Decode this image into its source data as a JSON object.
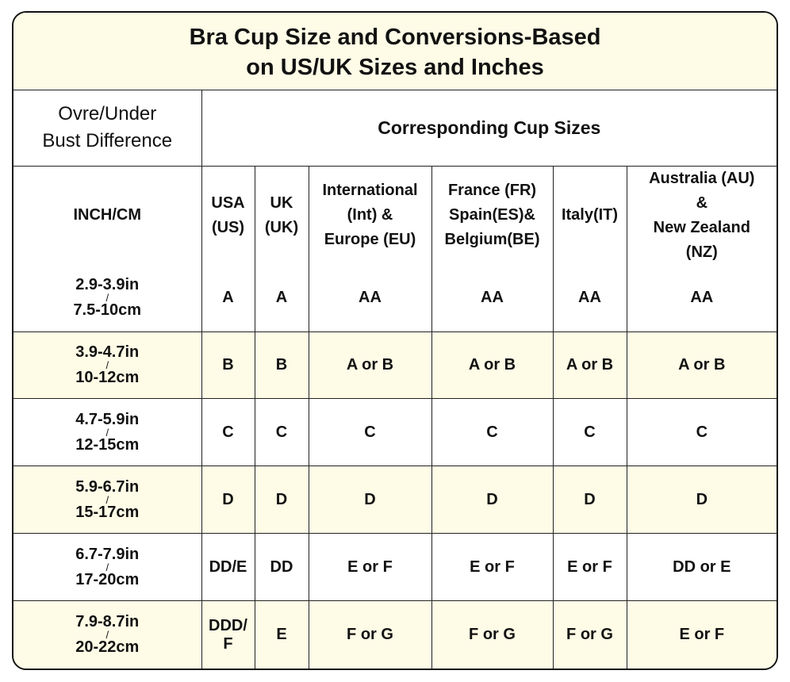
{
  "title_line1": "Bra Cup Size and Conversions-Based",
  "title_line2": "on US/UK Sizes and Inches",
  "left_header_line1": "Ovre/Under",
  "left_header_line2": "Bust Difference",
  "group_header": "Corresponding Cup Sizes",
  "columns": [
    {
      "lines": [
        "INCH/CM"
      ]
    },
    {
      "lines": [
        "USA",
        "(US)"
      ]
    },
    {
      "lines": [
        "UK",
        "(UK)"
      ]
    },
    {
      "lines": [
        "International",
        "(Int) &",
        "Europe (EU)"
      ]
    },
    {
      "lines": [
        "France (FR)",
        "Spain(ES)&",
        "Belgium(BE)"
      ]
    },
    {
      "lines": [
        "Italy(IT)"
      ]
    },
    {
      "lines": [
        "Australia (AU)",
        "&",
        "New Zealand",
        "(NZ)"
      ]
    }
  ],
  "rows": [
    {
      "in": "2.9-3.9in",
      "sep": "/",
      "cm": "7.5-10cm",
      "us": "A",
      "uk": "A",
      "eu": "AA",
      "fr": "AA",
      "it": "AA",
      "au": "AA"
    },
    {
      "in": "3.9-4.7in",
      "sep": "/",
      "cm": "10-12cm",
      "us": "B",
      "uk": "B",
      "eu": "A or B",
      "fr": "A or B",
      "it": "A or B",
      "au": "A or B"
    },
    {
      "in": "4.7-5.9in",
      "sep": "/",
      "cm": "12-15cm",
      "us": "C",
      "uk": "C",
      "eu": "C",
      "fr": "C",
      "it": "C",
      "au": "C"
    },
    {
      "in": "5.9-6.7in",
      "sep": "/",
      "cm": "15-17cm",
      "us": "D",
      "uk": "D",
      "eu": "D",
      "fr": "D",
      "it": "D",
      "au": "D"
    },
    {
      "in": "6.7-7.9in",
      "sep": "/",
      "cm": "17-20cm",
      "us": "DD/E",
      "uk": "DD",
      "eu": "E or F",
      "fr": "E or F",
      "it": "E or F",
      "au": "DD or E"
    },
    {
      "in": "7.9-8.7in",
      "sep": "/",
      "cm": "20-22cm",
      "us": "DDD/ F",
      "uk": "E",
      "eu": "F or G",
      "fr": "F or G",
      "it": "F or G",
      "au": "E or F"
    }
  ],
  "colors": {
    "shade": "#fefce6",
    "border": "#222222"
  }
}
